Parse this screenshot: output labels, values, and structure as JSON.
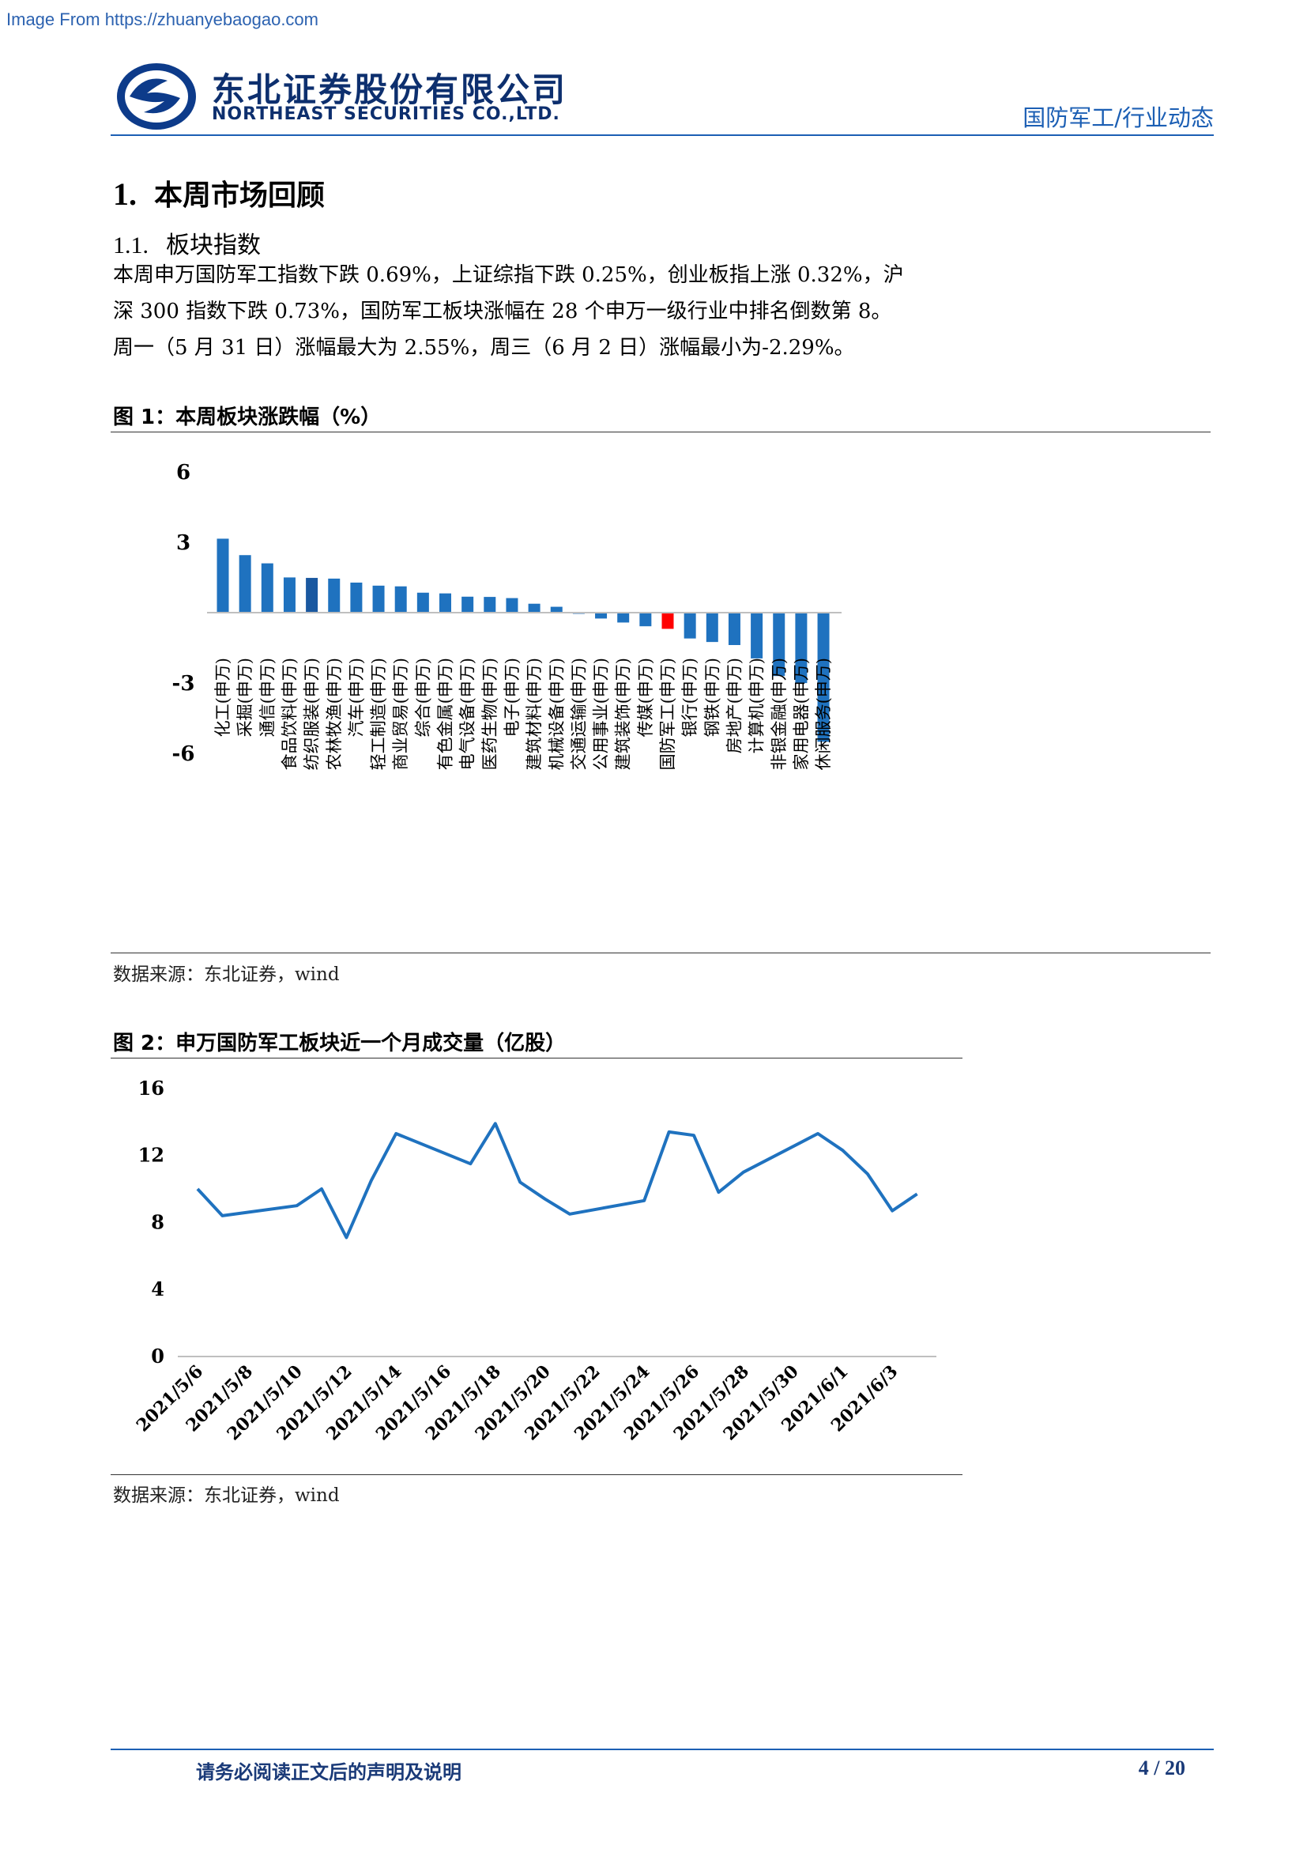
{
  "watermark": "Image From https://zhuanyebaogao.com",
  "header": {
    "company_cn": "东北证券股份有限公司",
    "company_en": "NORTHEAST SECURITIES CO.,LTD.",
    "category": "国防军工/行业动态"
  },
  "section": {
    "number": "1.",
    "title": "本周市场回顾"
  },
  "subsection": {
    "number": "1.1.",
    "title": "板块指数"
  },
  "paragraph": [
    "本周申万国防军工指数下跌 0.69%，上证综指下跌 0.25%，创业板指上涨 0.32%，沪",
    "深 300 指数下跌 0.73%，国防军工板块涨幅在 28 个申万一级行业中排名倒数第 8。",
    "周一（5 月 31 日）涨幅最大为 2.55%，周三（6 月 2 日）涨幅最小为-2.29%。"
  ],
  "figure1": {
    "title": "图 1：本周板块涨跌幅（%）",
    "source": "数据来源：东北证券，wind"
  },
  "figure2": {
    "title": "图 2：申万国防军工板块近一个月成交量（亿股）",
    "source": "数据来源：东北证券，wind"
  },
  "footer": {
    "disclaimer": "请务必阅读正文后的声明及说明",
    "page": "4 / 20"
  },
  "colors": {
    "bar": "#1f72bf",
    "highlight": "#ff0000",
    "dark_bar": "#1a58a0",
    "line": "#1f72bf",
    "brand": "#0d2f6e"
  },
  "chart_data": [
    {
      "type": "bar",
      "ylim": [
        -6,
        6
      ],
      "yticks": [
        6,
        3,
        -3,
        -6
      ],
      "highlight_category": "国防军工(申万)",
      "categories": [
        "化工(申万)",
        "采掘(申万)",
        "通信(申万)",
        "食品饮料(申万)",
        "纺织服装(申万)",
        "农林牧渔(申万)",
        "汽车(申万)",
        "轻工制造(申万)",
        "商业贸易(申万)",
        "综合(申万)",
        "有色金属(申万)",
        "电气设备(申万)",
        "医药生物(申万)",
        "电子(申万)",
        "建筑材料(申万)",
        "机械设备(申万)",
        "交通运输(申万)",
        "公用事业(申万)",
        "建筑装饰(申万)",
        "传媒(申万)",
        "国防军工(申万)",
        "银行(申万)",
        "钢铁(申万)",
        "房地产(申万)",
        "计算机(申万)",
        "非银金融(申万)",
        "家用电器(申万)",
        "休闲服务(申万)"
      ],
      "values": [
        3.15,
        2.45,
        2.1,
        1.5,
        1.48,
        1.45,
        1.28,
        1.15,
        1.12,
        0.85,
        0.82,
        0.68,
        0.67,
        0.62,
        0.38,
        0.25,
        -0.05,
        -0.25,
        -0.42,
        -0.58,
        -0.69,
        -1.1,
        -1.25,
        -1.38,
        -1.95,
        -2.7,
        -3.0,
        -5.5
      ]
    },
    {
      "type": "line",
      "ylim": [
        0,
        16
      ],
      "yticks": [
        16,
        12,
        8,
        4,
        0
      ],
      "x_labels": [
        "2021/5/6",
        "2021/5/8",
        "2021/5/10",
        "2021/5/12",
        "2021/5/14",
        "2021/5/16",
        "2021/5/18",
        "2021/5/20",
        "2021/5/22",
        "2021/5/24",
        "2021/5/26",
        "2021/5/28",
        "2021/5/30",
        "2021/6/1",
        "2021/6/3"
      ],
      "x": [
        "2021/5/6",
        "2021/5/7",
        "2021/5/10",
        "2021/5/11",
        "2021/5/12",
        "2021/5/13",
        "2021/5/14",
        "2021/5/17",
        "2021/5/18",
        "2021/5/19",
        "2021/5/20",
        "2021/5/21",
        "2021/5/24",
        "2021/5/25",
        "2021/5/26",
        "2021/5/27",
        "2021/5/28",
        "2021/5/31",
        "2021/6/1",
        "2021/6/2",
        "2021/6/3",
        "2021/6/4"
      ],
      "values": [
        10.0,
        8.4,
        9.0,
        10.0,
        7.1,
        10.5,
        13.3,
        11.5,
        13.9,
        10.4,
        9.4,
        8.5,
        9.3,
        13.4,
        13.2,
        9.8,
        11.0,
        13.3,
        12.3,
        10.9,
        8.7,
        9.7
      ]
    }
  ]
}
